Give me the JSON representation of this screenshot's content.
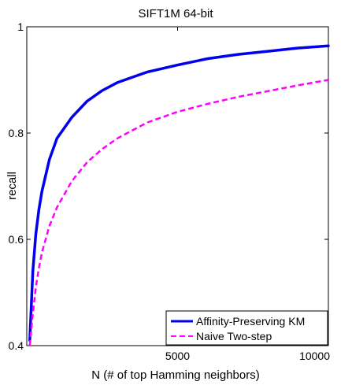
{
  "chart_data": {
    "type": "line",
    "title": "SIFT1M  64-bit",
    "xlabel": "N (# of top Hamming neighbors)",
    "ylabel": "recall",
    "xlim": [
      0,
      10000
    ],
    "ylim": [
      0.4,
      1.0
    ],
    "x_ticks": [
      0,
      5000,
      10000
    ],
    "x_tick_labels": [
      "",
      "5000",
      "10000"
    ],
    "y_ticks": [
      0.4,
      0.6,
      0.8,
      1.0
    ],
    "y_tick_labels": [
      "0.4",
      "0.6",
      "0.8",
      "1"
    ],
    "grid": false,
    "legend_position": "bottom-right",
    "x": [
      100,
      200,
      300,
      400,
      500,
      750,
      1000,
      1500,
      2000,
      2500,
      3000,
      3500,
      4000,
      5000,
      6000,
      7000,
      8000,
      9000,
      10000
    ],
    "series": [
      {
        "name": "Affinity-Preserving KM",
        "color": "#0000ee",
        "dash": "solid",
        "values": [
          0.41,
          0.54,
          0.61,
          0.655,
          0.69,
          0.75,
          0.79,
          0.83,
          0.86,
          0.88,
          0.895,
          0.905,
          0.915,
          0.928,
          0.94,
          0.948,
          0.954,
          0.96,
          0.964
        ]
      },
      {
        "name": "Naive Two-step",
        "color": "#ff00ff",
        "dash": "dashed",
        "values": [
          0.4,
          0.46,
          0.51,
          0.545,
          0.575,
          0.625,
          0.66,
          0.71,
          0.745,
          0.77,
          0.79,
          0.805,
          0.82,
          0.84,
          0.855,
          0.868,
          0.879,
          0.89,
          0.9
        ]
      }
    ]
  }
}
